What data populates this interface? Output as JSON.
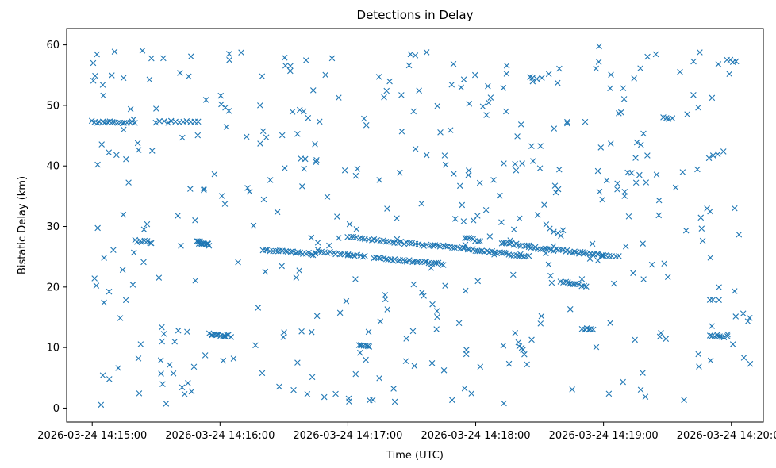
{
  "chart_data": {
    "type": "scatter",
    "title": "Detections in Delay",
    "xlabel": "Time (UTC)",
    "ylabel": "Bistatic Delay (km)",
    "xlim": [
      "2026-03-24 14:14:48",
      "2026-03-24 14:20:15"
    ],
    "ylim": [
      -2.3,
      62.7
    ],
    "x_ticks": [
      "2026-03-24 14:15:00",
      "2026-03-24 14:16:00",
      "2026-03-24 14:17:00",
      "2026-03-24 14:18:00",
      "2026-03-24 14:19:00",
      "2026-03-24 14:20:00"
    ],
    "y_ticks": [
      0,
      10,
      20,
      30,
      40,
      50,
      60
    ],
    "grid": false,
    "marker": "x",
    "color": "#1f77b4",
    "series": [
      {
        "tracks": [
          {
            "t_start": "2026-03-24 14:15:00",
            "t_end": "2026-03-24 14:15:20",
            "y_start": 47.3,
            "y_end": 47.2,
            "n": 18
          },
          {
            "t_start": "2026-03-24 14:15:30",
            "t_end": "2026-03-24 14:15:50",
            "y_start": 47.3,
            "y_end": 47.2,
            "n": 12
          },
          {
            "t_start": "2026-03-24 14:15:49",
            "t_end": "2026-03-24 14:15:55",
            "y_start": 27.5,
            "y_end": 27.0,
            "n": 14
          },
          {
            "t_start": "2026-03-24 14:15:20",
            "t_end": "2026-03-24 14:15:28",
            "y_start": 27.6,
            "y_end": 27.4,
            "n": 8
          },
          {
            "t_start": "2026-03-24 14:15:55",
            "t_end": "2026-03-24 14:16:05",
            "y_start": 12.2,
            "y_end": 11.9,
            "n": 14
          },
          {
            "t_start": "2026-03-24 14:16:20",
            "t_end": "2026-03-24 14:16:45",
            "y_start": 26.2,
            "y_end": 25.4,
            "n": 22
          },
          {
            "t_start": "2026-03-24 14:16:45",
            "t_end": "2026-03-24 14:17:00",
            "y_start": 25.8,
            "y_end": 25.4,
            "n": 12
          },
          {
            "t_start": "2026-03-24 14:17:00",
            "t_end": "2026-03-24 14:17:40",
            "y_start": 28.2,
            "y_end": 26.8,
            "n": 30
          },
          {
            "t_start": "2026-03-24 14:17:00",
            "t_end": "2026-03-24 14:17:08",
            "y_start": 25.4,
            "y_end": 25.0,
            "n": 8
          },
          {
            "t_start": "2026-03-24 14:17:12",
            "t_end": "2026-03-24 14:17:45",
            "y_start": 24.8,
            "y_end": 23.8,
            "n": 30
          },
          {
            "t_start": "2026-03-24 14:17:05",
            "t_end": "2026-03-24 14:17:10",
            "y_start": 10.5,
            "y_end": 10.0,
            "n": 7
          },
          {
            "t_start": "2026-03-24 14:17:40",
            "t_end": "2026-03-24 14:18:25",
            "y_start": 27.0,
            "y_end": 25.0,
            "n": 40
          },
          {
            "t_start": "2026-03-24 14:17:55",
            "t_end": "2026-03-24 14:18:02",
            "y_start": 28.2,
            "y_end": 27.6,
            "n": 8
          },
          {
            "t_start": "2026-03-24 14:18:12",
            "t_end": "2026-03-24 14:18:25",
            "y_start": 27.3,
            "y_end": 26.8,
            "n": 12
          },
          {
            "t_start": "2026-03-24 14:18:25",
            "t_end": "2026-03-24 14:19:00",
            "y_start": 26.6,
            "y_end": 25.2,
            "n": 34
          },
          {
            "t_start": "2026-03-24 14:19:00",
            "t_end": "2026-03-24 14:19:07",
            "y_start": 25.3,
            "y_end": 25.0,
            "n": 6
          },
          {
            "t_start": "2026-03-24 14:18:40",
            "t_end": "2026-03-24 14:18:52",
            "y_start": 20.8,
            "y_end": 20.2,
            "n": 12
          },
          {
            "t_start": "2026-03-24 14:18:50",
            "t_end": "2026-03-24 14:18:55",
            "y_start": 13.2,
            "y_end": 12.8,
            "n": 6
          },
          {
            "t_start": "2026-03-24 14:18:20",
            "t_end": "2026-03-24 14:18:23",
            "y_start": 10.8,
            "y_end": 9.0,
            "n": 5
          },
          {
            "t_start": "2026-03-24 14:19:28",
            "t_end": "2026-03-24 14:19:32",
            "y_start": 48.2,
            "y_end": 47.8,
            "n": 4
          },
          {
            "t_start": "2026-03-24 14:19:50",
            "t_end": "2026-03-24 14:19:58",
            "y_start": 12.0,
            "y_end": 11.8,
            "n": 8
          },
          {
            "t_start": "2026-03-24 14:19:58",
            "t_end": "2026-03-24 14:20:02",
            "y_start": 57.5,
            "y_end": 57.2,
            "n": 4
          },
          {
            "t_start": "2026-03-24 14:18:35",
            "t_end": "2026-03-24 14:18:40",
            "y_start": 29.5,
            "y_end": 28.5,
            "n": 4
          }
        ],
        "clutter": {
          "count": 420,
          "t_start": "2026-03-24 14:15:00",
          "t_end": "2026-03-24 14:20:10",
          "y_min": 0.5,
          "y_max": 60.0
        }
      }
    ]
  }
}
